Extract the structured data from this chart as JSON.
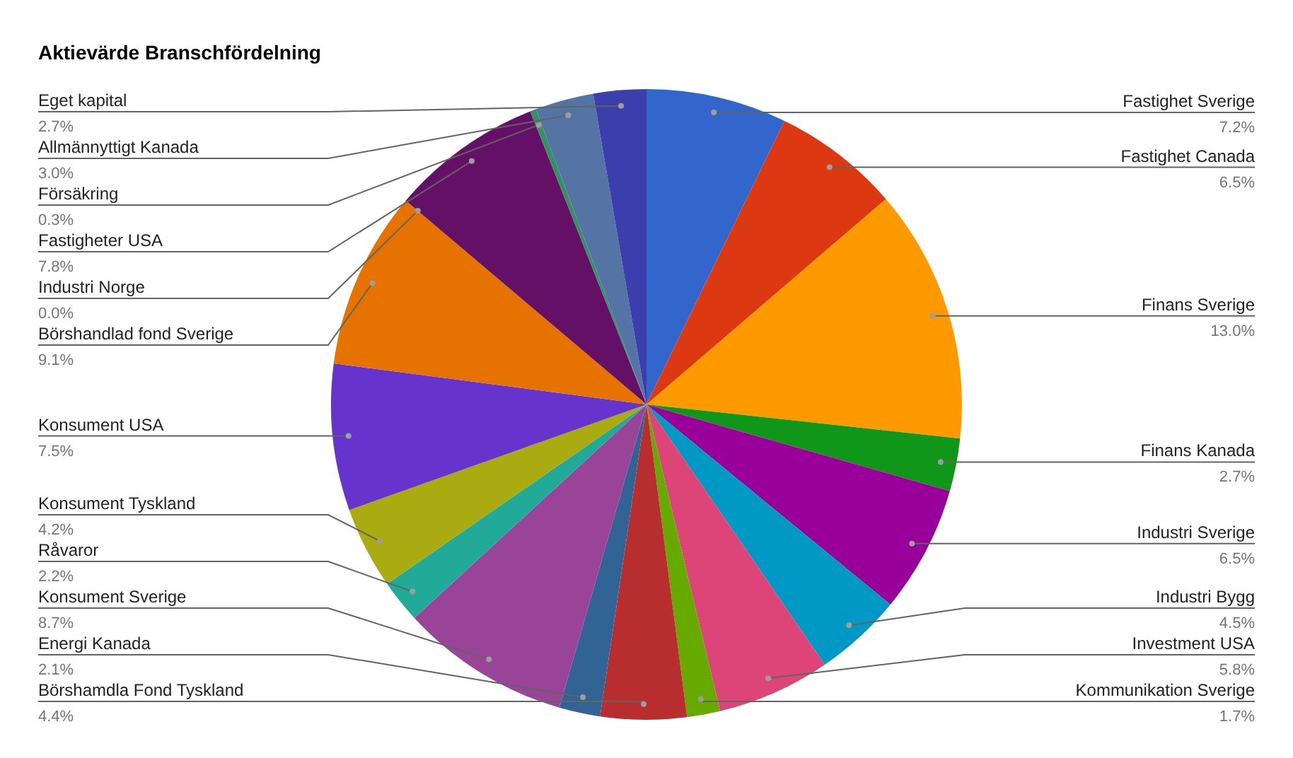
{
  "chart_data": {
    "type": "pie",
    "title": "Aktievärde Branschfördelning",
    "categories": [
      "Fastighet Sverige",
      "Fastighet Canada",
      "Finans Sverige",
      "Finans Kanada",
      "Industri Sverige",
      "Industri Bygg",
      "Investment USA",
      "Kommunikation Sverige",
      "Börshamdla Fond Tyskland",
      "Energi Kanada",
      "Konsument Sverige",
      "Råvaror",
      "Konsument Tyskland",
      "Konsument USA",
      "Börshandlad fond Sverige",
      "Industri Norge",
      "Fastigheter USA",
      "Försäkring",
      "Allmännyttigt Kanada",
      "Eget kapital"
    ],
    "values": [
      7.2,
      6.5,
      13.0,
      2.7,
      6.5,
      4.5,
      5.8,
      1.7,
      4.4,
      2.1,
      8.7,
      2.2,
      4.2,
      7.5,
      9.1,
      0.0,
      7.8,
      0.3,
      3.0,
      2.7
    ],
    "value_labels": [
      "7.2%",
      "6.5%",
      "13.0%",
      "2.7%",
      "6.5%",
      "4.5%",
      "5.8%",
      "1.7%",
      "4.4%",
      "2.1%",
      "8.7%",
      "2.2%",
      "4.2%",
      "7.5%",
      "9.1%",
      "0.0%",
      "7.8%",
      "0.3%",
      "3.0%",
      "2.7%"
    ],
    "colors": [
      "#3366cc",
      "#dc3912",
      "#ff9900",
      "#109618",
      "#990099",
      "#0099c6",
      "#dd4477",
      "#66aa00",
      "#b82e2e",
      "#316395",
      "#994499",
      "#22aa99",
      "#aaaa11",
      "#6633cc",
      "#e67300",
      "#8b0707",
      "#651067",
      "#329262",
      "#5574a6",
      "#3b3eac"
    ]
  }
}
